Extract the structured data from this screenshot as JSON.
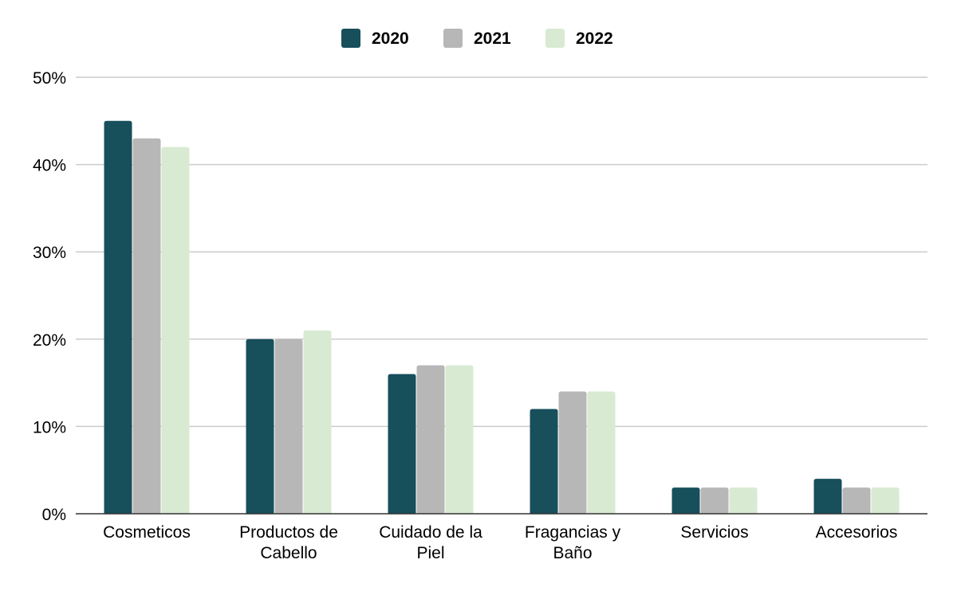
{
  "chart_data": {
    "type": "bar",
    "title": "",
    "xlabel": "",
    "ylabel": "",
    "categories": [
      [
        "Cosmeticos"
      ],
      [
        "Productos de",
        "Cabello"
      ],
      [
        "Cuidado de la",
        "Piel"
      ],
      [
        "Fragancias y",
        "Baño"
      ],
      [
        "Servicios"
      ],
      [
        "Accesorios"
      ]
    ],
    "series": [
      {
        "name": "2020",
        "color": "#174f5b",
        "values": [
          45,
          20,
          16,
          12,
          3,
          4
        ]
      },
      {
        "name": "2021",
        "color": "#b7b7b7",
        "values": [
          43,
          20,
          17,
          14,
          3,
          3
        ]
      },
      {
        "name": "2022",
        "color": "#d9ead3",
        "values": [
          42,
          21,
          17,
          14,
          3,
          3
        ]
      }
    ],
    "yticks": [
      "0%",
      "10%",
      "20%",
      "30%",
      "40%",
      "50%"
    ],
    "ylim": [
      0,
      50
    ],
    "grid": true,
    "legend": "top-center"
  }
}
